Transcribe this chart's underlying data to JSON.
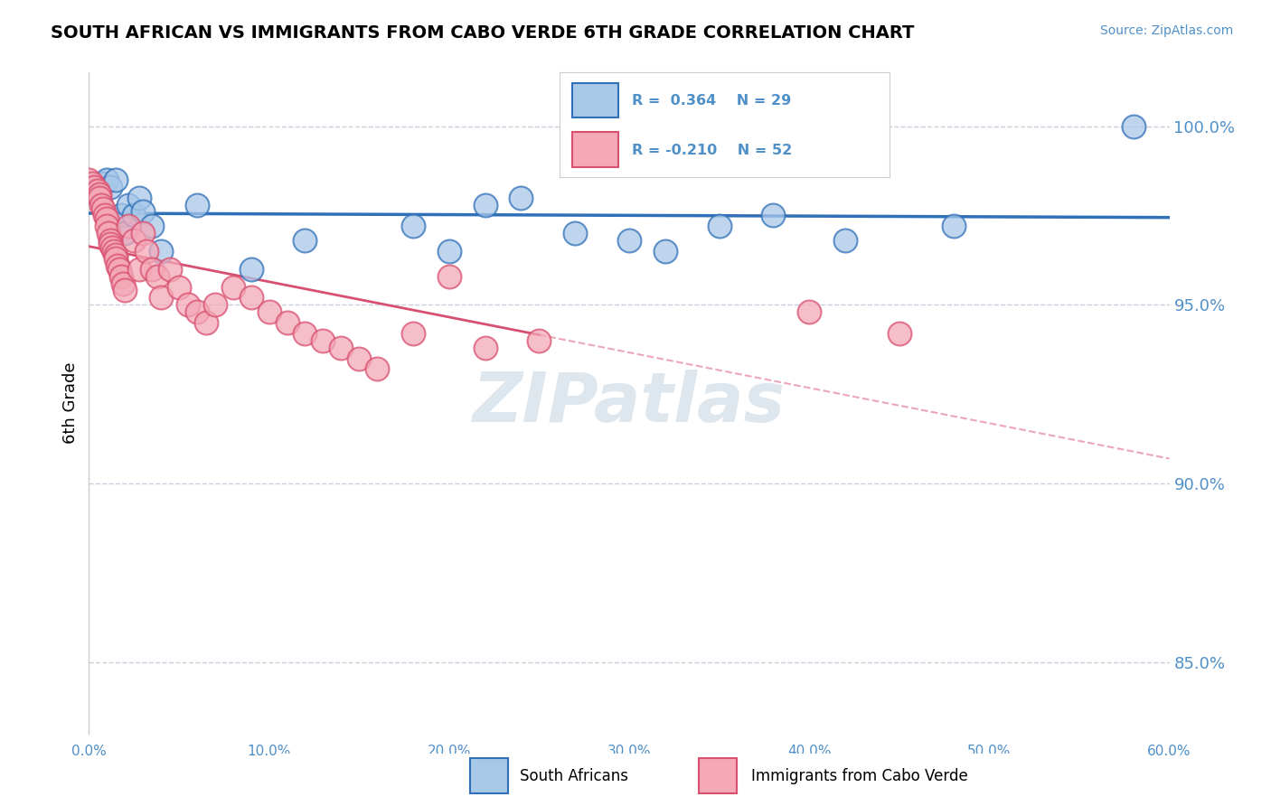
{
  "title": "SOUTH AFRICAN VS IMMIGRANTS FROM CABO VERDE 6TH GRADE CORRELATION CHART",
  "source": "Source: ZipAtlas.com",
  "ylabel": "6th Grade",
  "legend_blue_R": "R =  0.364",
  "legend_blue_N": "N = 29",
  "legend_pink_R": "R = -0.210",
  "legend_pink_N": "N = 52",
  "blue_color": "#a8c8e8",
  "pink_color": "#f4a8b8",
  "trend_blue_color": "#3070b8",
  "trend_pink_color": "#d85070",
  "axis_label_color": "#5090c8",
  "watermark_color": "#d0dce8",
  "background_color": "#ffffff",
  "grid_color": "#c8d0dc",
  "xlim": [
    0.0,
    0.6
  ],
  "ylim": [
    0.83,
    1.015
  ],
  "yticks": [
    0.85,
    0.9,
    0.95,
    1.0
  ],
  "ytick_labels": [
    "85.0%",
    "90.0%",
    "95.0%",
    "100.0%"
  ],
  "blue_x": [
    0.0,
    0.005,
    0.008,
    0.01,
    0.012,
    0.015,
    0.018,
    0.02,
    0.022,
    0.025,
    0.028,
    0.03,
    0.035,
    0.04,
    0.06,
    0.09,
    0.12,
    0.18,
    0.2,
    0.22,
    0.24,
    0.27,
    0.3,
    0.32,
    0.35,
    0.38,
    0.42,
    0.48,
    0.58
  ],
  "blue_y": [
    0.982,
    0.983,
    0.984,
    0.985,
    0.983,
    0.985,
    0.975,
    0.97,
    0.978,
    0.975,
    0.98,
    0.976,
    0.972,
    0.965,
    0.978,
    0.96,
    0.968,
    0.972,
    0.965,
    0.978,
    0.98,
    0.97,
    0.968,
    0.965,
    0.972,
    0.975,
    0.968,
    0.972,
    1.0
  ],
  "pink_x": [
    0.0,
    0.002,
    0.003,
    0.005,
    0.006,
    0.006,
    0.007,
    0.008,
    0.009,
    0.01,
    0.01,
    0.011,
    0.012,
    0.012,
    0.013,
    0.014,
    0.015,
    0.015,
    0.016,
    0.017,
    0.018,
    0.019,
    0.02,
    0.022,
    0.025,
    0.028,
    0.03,
    0.032,
    0.035,
    0.038,
    0.04,
    0.045,
    0.05,
    0.055,
    0.06,
    0.065,
    0.07,
    0.08,
    0.09,
    0.1,
    0.11,
    0.12,
    0.13,
    0.14,
    0.15,
    0.16,
    0.18,
    0.2,
    0.22,
    0.25,
    0.4,
    0.45
  ],
  "pink_y": [
    0.985,
    0.984,
    0.983,
    0.982,
    0.981,
    0.98,
    0.978,
    0.977,
    0.975,
    0.974,
    0.972,
    0.97,
    0.968,
    0.967,
    0.966,
    0.965,
    0.964,
    0.963,
    0.961,
    0.96,
    0.958,
    0.956,
    0.954,
    0.972,
    0.968,
    0.96,
    0.97,
    0.965,
    0.96,
    0.958,
    0.952,
    0.96,
    0.955,
    0.95,
    0.948,
    0.945,
    0.95,
    0.955,
    0.952,
    0.948,
    0.945,
    0.942,
    0.94,
    0.938,
    0.935,
    0.932,
    0.942,
    0.958,
    0.938,
    0.94,
    0.948,
    0.942
  ]
}
